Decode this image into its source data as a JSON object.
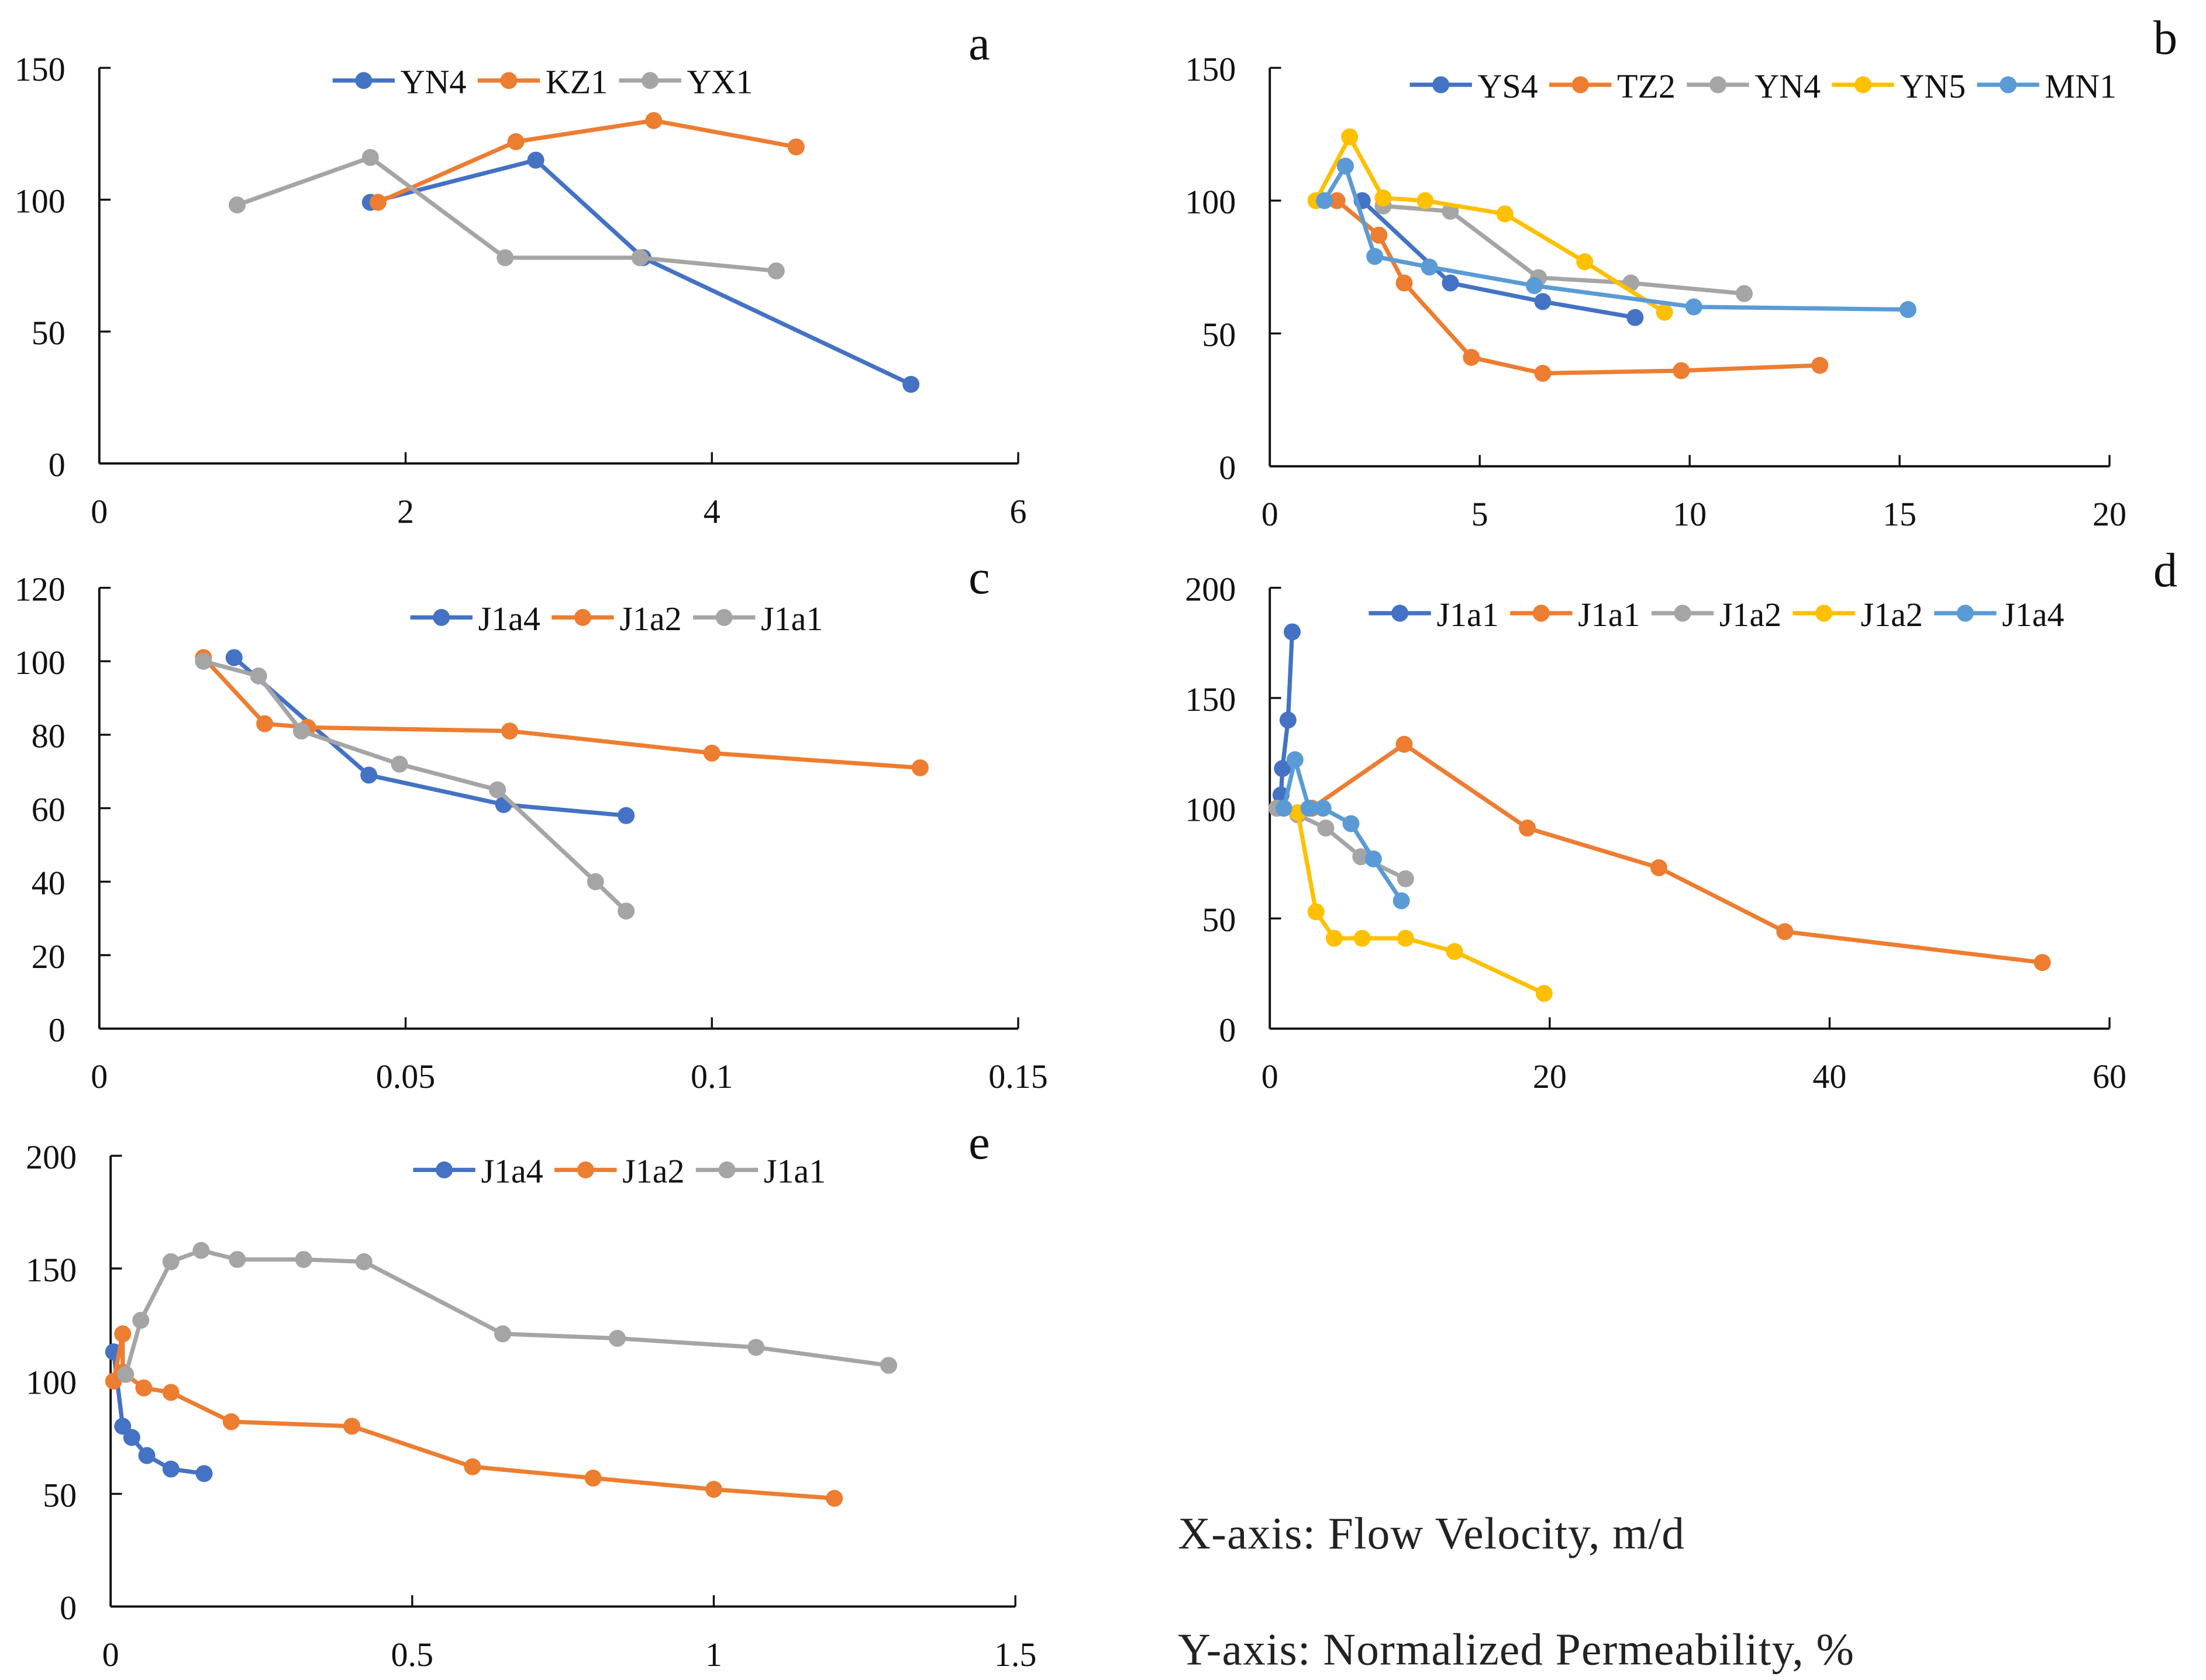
{
  "colors": {
    "blue": "#4472C4",
    "orange": "#ED7D31",
    "gray": "#A5A5A5",
    "yellow": "#FFC000",
    "lightblue": "#5B9BD5"
  },
  "notes": {
    "x_axis": "X-axis: Flow Velocity, m/d",
    "y_axis": "Y-axis: Normalized Permeability, %"
  },
  "chart_data": [
    {
      "id": "a",
      "type": "line",
      "panel_label": "a",
      "xlim": [
        0,
        6
      ],
      "ylim": [
        0,
        150
      ],
      "xticks": [
        0,
        2,
        4,
        6
      ],
      "yticks": [
        0,
        50,
        100,
        150
      ],
      "legend": "top-center",
      "grid": false,
      "series": [
        {
          "name": "YN4",
          "color": "#4472C4",
          "points": [
            [
              1.77,
              99
            ],
            [
              2.85,
              115
            ],
            [
              3.55,
              78
            ],
            [
              5.3,
              30
            ]
          ]
        },
        {
          "name": "KZ1",
          "color": "#ED7D31",
          "points": [
            [
              1.82,
              99
            ],
            [
              2.72,
              122
            ],
            [
              3.62,
              130
            ],
            [
              4.55,
              120
            ]
          ]
        },
        {
          "name": "YX1",
          "color": "#A5A5A5",
          "points": [
            [
              0.9,
              98
            ],
            [
              1.77,
              116
            ],
            [
              2.65,
              78
            ],
            [
              3.53,
              78
            ],
            [
              4.42,
              73
            ]
          ]
        }
      ]
    },
    {
      "id": "b",
      "type": "line",
      "panel_label": "b",
      "xlim": [
        0,
        20
      ],
      "ylim": [
        0,
        150
      ],
      "xticks": [
        0,
        5,
        10,
        15,
        20
      ],
      "yticks": [
        0,
        50,
        100,
        150
      ],
      "legend": "top-center",
      "grid": false,
      "series": [
        {
          "name": "YS4",
          "color": "#4472C4",
          "points": [
            [
              2.2,
              100
            ],
            [
              4.3,
              69
            ],
            [
              6.5,
              62
            ],
            [
              8.7,
              56
            ]
          ]
        },
        {
          "name": "TZ2",
          "color": "#ED7D31",
          "points": [
            [
              1.6,
              100
            ],
            [
              2.6,
              87
            ],
            [
              3.2,
              69
            ],
            [
              4.8,
              41
            ],
            [
              6.5,
              35
            ],
            [
              9.8,
              36
            ],
            [
              13.1,
              38
            ]
          ]
        },
        {
          "name": "YN4",
          "color": "#A5A5A5",
          "points": [
            [
              2.7,
              98
            ],
            [
              4.3,
              96
            ],
            [
              6.4,
              71
            ],
            [
              8.6,
              69
            ],
            [
              11.3,
              65
            ]
          ]
        },
        {
          "name": "YN5",
          "color": "#FFC000",
          "points": [
            [
              1.1,
              100
            ],
            [
              1.9,
              124
            ],
            [
              2.7,
              101
            ],
            [
              3.7,
              100
            ],
            [
              5.6,
              95
            ],
            [
              7.5,
              77
            ],
            [
              9.4,
              58
            ]
          ]
        },
        {
          "name": "MN1",
          "color": "#5B9BD5",
          "points": [
            [
              1.3,
              100
            ],
            [
              1.8,
              113
            ],
            [
              2.5,
              79
            ],
            [
              3.8,
              75
            ],
            [
              6.3,
              68
            ],
            [
              10.1,
              60
            ],
            [
              15.2,
              59
            ]
          ]
        }
      ]
    },
    {
      "id": "c",
      "type": "line",
      "panel_label": "c",
      "xlim": [
        0,
        0.15
      ],
      "ylim": [
        0,
        120
      ],
      "xticks": [
        0,
        0.05,
        0.1,
        0.15
      ],
      "yticks": [
        0,
        20,
        40,
        60,
        80,
        100,
        120
      ],
      "legend": "top-center",
      "grid": false,
      "series": [
        {
          "name": "J1a4",
          "color": "#4472C4",
          "points": [
            [
              0.022,
              101
            ],
            [
              0.044,
              69
            ],
            [
              0.066,
              61
            ],
            [
              0.086,
              58
            ]
          ]
        },
        {
          "name": "J1a2",
          "color": "#ED7D31",
          "points": [
            [
              0.017,
              101
            ],
            [
              0.027,
              83
            ],
            [
              0.034,
              82
            ],
            [
              0.067,
              81
            ],
            [
              0.1,
              75
            ],
            [
              0.134,
              71
            ]
          ]
        },
        {
          "name": "J1a1",
          "color": "#A5A5A5",
          "points": [
            [
              0.017,
              100
            ],
            [
              0.026,
              96
            ],
            [
              0.033,
              81
            ],
            [
              0.049,
              72
            ],
            [
              0.065,
              65
            ],
            [
              0.081,
              40
            ],
            [
              0.086,
              32
            ]
          ]
        }
      ]
    },
    {
      "id": "d",
      "type": "line",
      "panel_label": "d",
      "xlim": [
        0,
        60
      ],
      "ylim": [
        0,
        200
      ],
      "xticks": [
        0,
        20,
        40,
        60
      ],
      "yticks": [
        0,
        50,
        100,
        150,
        200
      ],
      "legend": "top-center",
      "grid": false,
      "series": [
        {
          "name": "J1a1",
          "color": "#4472C4",
          "points": [
            [
              0.8,
              106
            ],
            [
              0.9,
              118
            ],
            [
              1.3,
              140
            ],
            [
              1.6,
              180
            ]
          ]
        },
        {
          "name": "J1a1",
          "color": "#ED7D31",
          "points": [
            [
              1,
              100
            ],
            [
              3,
              100
            ],
            [
              9.6,
              129
            ],
            [
              18.4,
              91
            ],
            [
              27.8,
              73
            ],
            [
              36.8,
              44
            ],
            [
              55.2,
              30
            ]
          ]
        },
        {
          "name": "J1a2",
          "color": "#A5A5A5",
          "points": [
            [
              0.5,
              100
            ],
            [
              2,
              97
            ],
            [
              4,
              91
            ],
            [
              6.5,
              78
            ],
            [
              9.7,
              68
            ]
          ]
        },
        {
          "name": "J1a2",
          "color": "#FFC000",
          "points": [
            [
              1,
              100
            ],
            [
              2,
              98
            ],
            [
              3.3,
              53
            ],
            [
              4.6,
              41
            ],
            [
              6.6,
              41
            ],
            [
              9.7,
              41
            ],
            [
              13.2,
              35
            ],
            [
              19.6,
              16
            ]
          ]
        },
        {
          "name": "J1a4",
          "color": "#5B9BD5",
          "points": [
            [
              1,
              100
            ],
            [
              1.8,
              122
            ],
            [
              2.8,
              100
            ],
            [
              3.8,
              100
            ],
            [
              5.8,
              93
            ],
            [
              7.4,
              77
            ],
            [
              9.4,
              58
            ]
          ]
        }
      ]
    },
    {
      "id": "e",
      "type": "line",
      "panel_label": "e",
      "xlim": [
        0,
        1.5
      ],
      "ylim": [
        0,
        200
      ],
      "xticks": [
        0,
        0.5,
        1,
        1.5
      ],
      "yticks": [
        0,
        50,
        100,
        150,
        200
      ],
      "legend": "top-center",
      "grid": false,
      "series": [
        {
          "name": "J1a4",
          "color": "#4472C4",
          "points": [
            [
              0.005,
              113
            ],
            [
              0.02,
              80
            ],
            [
              0.035,
              75
            ],
            [
              0.06,
              67
            ],
            [
              0.1,
              61
            ],
            [
              0.155,
              59
            ]
          ]
        },
        {
          "name": "J1a2",
          "color": "#ED7D31",
          "points": [
            [
              0.005,
              100
            ],
            [
              0.02,
              121
            ],
            [
              0.02,
              104
            ],
            [
              0.055,
              97
            ],
            [
              0.1,
              95
            ],
            [
              0.2,
              82
            ],
            [
              0.4,
              80
            ],
            [
              0.6,
              62
            ],
            [
              0.8,
              57
            ],
            [
              1.0,
              52
            ],
            [
              1.2,
              48
            ]
          ]
        },
        {
          "name": "J1a1",
          "color": "#A5A5A5",
          "points": [
            [
              0.025,
              103
            ],
            [
              0.05,
              127
            ],
            [
              0.1,
              153
            ],
            [
              0.15,
              158
            ],
            [
              0.21,
              154
            ],
            [
              0.32,
              154
            ],
            [
              0.42,
              153
            ],
            [
              0.65,
              121
            ],
            [
              0.84,
              119
            ],
            [
              1.07,
              115
            ],
            [
              1.29,
              107
            ]
          ]
        }
      ]
    }
  ]
}
